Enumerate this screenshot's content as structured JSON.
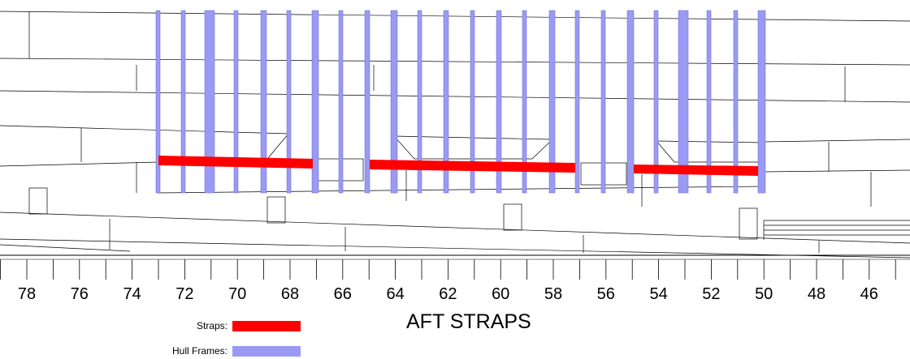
{
  "title": "AFT STRAPS",
  "legend": [
    {
      "label": "Straps:",
      "color": "#ff0000"
    },
    {
      "label": "Hull Frames:",
      "color": "#9a9af5"
    }
  ],
  "frame_axis": {
    "labels": [
      "78",
      "76",
      "74",
      "72",
      "70",
      "68",
      "66",
      "64",
      "62",
      "60",
      "58",
      "56",
      "54",
      "52",
      "50",
      "48",
      "46"
    ]
  },
  "colors": {
    "strap": "#ff0000",
    "hull_frame": "#9a9af5",
    "lines": "#000000"
  }
}
